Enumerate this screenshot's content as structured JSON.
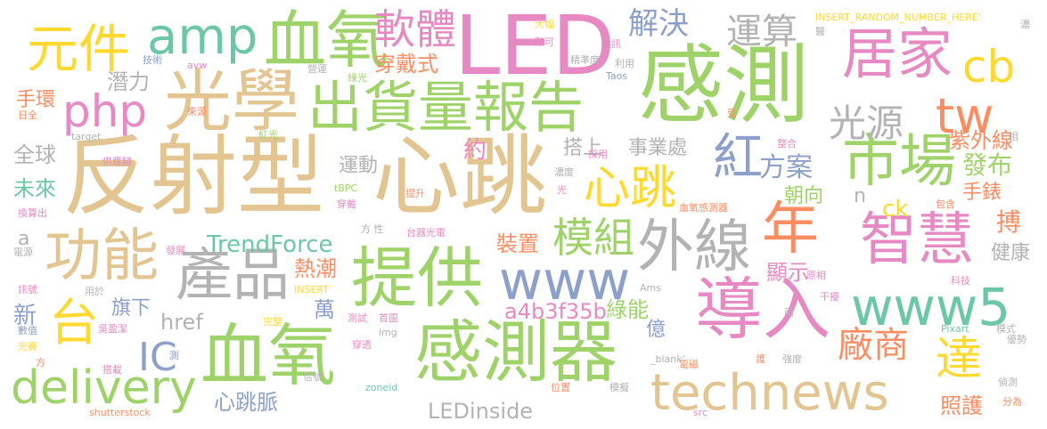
{
  "wordcloud": {
    "palette": {
      "green": "#9fd36a",
      "tan": "#e3c592",
      "gray": "#b3b3b3",
      "teal": "#6cc7a8",
      "pink": "#e78ac3",
      "blue": "#8da0cb",
      "orange": "#fc8d62",
      "yellow": "#ffd92f"
    },
    "words": [
      {
        "text": "感測",
        "color": "green"
      },
      {
        "text": "反射型",
        "color": "tan"
      },
      {
        "text": "心跳",
        "color": "tan"
      },
      {
        "text": "血氧",
        "color": "green"
      },
      {
        "text": "LED",
        "color": "pink"
      },
      {
        "text": "光學",
        "color": "tan"
      },
      {
        "text": "出貨量報告",
        "color": "green"
      },
      {
        "text": "感測器",
        "color": "green"
      },
      {
        "text": "血氧",
        "color": "green"
      },
      {
        "text": "提供",
        "color": "green"
      },
      {
        "text": "導入",
        "color": "pink"
      },
      {
        "text": "technews",
        "color": "tan"
      },
      {
        "text": "產品",
        "color": "gray"
      },
      {
        "text": "功能",
        "color": "tan"
      },
      {
        "text": "www5",
        "color": "teal"
      },
      {
        "text": "外線",
        "color": "gray"
      },
      {
        "text": "智慧",
        "color": "pink"
      },
      {
        "text": "市場",
        "color": "green"
      },
      {
        "text": "年",
        "color": "orange"
      },
      {
        "text": "居家",
        "color": "pink"
      },
      {
        "text": "元件",
        "color": "yellow"
      },
      {
        "text": "amp",
        "color": "teal"
      },
      {
        "text": "軟體",
        "color": "pink"
      },
      {
        "text": "www",
        "color": "blue"
      },
      {
        "text": "心跳",
        "color": "yellow"
      },
      {
        "text": "php",
        "color": "pink"
      },
      {
        "text": "delivery",
        "color": "green"
      },
      {
        "text": "tw",
        "color": "orange"
      },
      {
        "text": "cb",
        "color": "yellow"
      },
      {
        "text": "模組",
        "color": "green"
      },
      {
        "text": "紅",
        "color": "blue"
      },
      {
        "text": "台",
        "color": "yellow"
      },
      {
        "text": "廠商",
        "color": "orange"
      },
      {
        "text": "達",
        "color": "yellow"
      },
      {
        "text": "運算",
        "color": "gray"
      },
      {
        "text": "解決",
        "color": "blue"
      },
      {
        "text": "光源",
        "color": "gray"
      },
      {
        "text": "TrendForce",
        "color": "teal"
      },
      {
        "text": "a4b3f35b",
        "color": "pink"
      },
      {
        "text": "IC",
        "color": "blue"
      },
      {
        "text": "方案",
        "color": "blue"
      },
      {
        "text": "紫外線",
        "color": "orange"
      },
      {
        "text": "LEDinside",
        "color": "gray"
      },
      {
        "text": "心跳脈",
        "color": "blue"
      },
      {
        "text": "穿戴式",
        "color": "orange"
      },
      {
        "text": "潛力",
        "color": "gray"
      },
      {
        "text": "手環",
        "color": "orange"
      },
      {
        "text": "全球",
        "color": "gray"
      },
      {
        "text": "未來",
        "color": "teal"
      },
      {
        "text": "運動",
        "color": "gray"
      },
      {
        "text": "搭上",
        "color": "gray"
      },
      {
        "text": "事業處",
        "color": "gray"
      },
      {
        "text": "發布",
        "color": "green"
      },
      {
        "text": "手錶",
        "color": "orange"
      },
      {
        "text": "朝向",
        "color": "green"
      },
      {
        "text": "裝置",
        "color": "orange"
      },
      {
        "text": "熱潮",
        "color": "orange"
      },
      {
        "text": "顯示",
        "color": "pink"
      },
      {
        "text": "綠能",
        "color": "green"
      },
      {
        "text": "健康",
        "color": "gray"
      },
      {
        "text": "照護",
        "color": "orange"
      },
      {
        "text": "旗下",
        "color": "blue"
      },
      {
        "text": "href",
        "color": "gray"
      },
      {
        "text": "新",
        "color": "blue"
      },
      {
        "text": "萬",
        "color": "blue"
      },
      {
        "text": "億",
        "color": "blue"
      },
      {
        "text": "約",
        "color": "pink"
      },
      {
        "text": "ck",
        "color": "yellow"
      },
      {
        "text": "搏",
        "color": "orange"
      },
      {
        "text": "a",
        "color": "gray"
      },
      {
        "text": "n",
        "color": "gray"
      },
      {
        "text": "大幅",
        "color": "yellow"
      },
      {
        "text": "即可",
        "color": "pink"
      },
      {
        "text": "精準度",
        "color": "gray"
      },
      {
        "text": "雜訊",
        "color": "pink"
      },
      {
        "text": "INSERT_RANDOM_NUMBER_HERE'",
        "color": "yellow"
      },
      {
        "text": "利用",
        "color": "gray"
      },
      {
        "text": "Taos",
        "color": "blue"
      },
      {
        "text": "技術",
        "color": "blue"
      },
      {
        "text": "avw",
        "color": "pink"
      },
      {
        "text": "營運",
        "color": "gray"
      },
      {
        "text": "綠光",
        "color": "green"
      },
      {
        "text": "日全",
        "color": "orange"
      },
      {
        "text": "來源",
        "color": "orange"
      },
      {
        "text": "target",
        "color": "gray"
      },
      {
        "text": "紅光",
        "color": "green"
      },
      {
        "text": "供應鏈",
        "color": "pink"
      },
      {
        "text": "採用",
        "color": "pink"
      },
      {
        "text": "濃度",
        "color": "gray"
      },
      {
        "text": "提升",
        "color": "orange"
      },
      {
        "text": "tBPC",
        "color": "green"
      },
      {
        "text": "穿戴",
        "color": "pink"
      },
      {
        "text": "光",
        "color": "pink"
      },
      {
        "text": "換算出",
        "color": "pink"
      },
      {
        "text": "電源",
        "color": "gray"
      },
      {
        "text": "發展",
        "color": "pink"
      },
      {
        "text": "方 性",
        "color": "gray"
      },
      {
        "text": "台器光電",
        "color": "pink"
      },
      {
        "text": "血氧感測器",
        "color": "orange"
      },
      {
        "text": "包含",
        "color": "orange"
      },
      {
        "text": "訊號",
        "color": "pink"
      },
      {
        "text": "用於",
        "color": "gray"
      },
      {
        "text": "INSERT",
        "color": "yellow"
      },
      {
        "text": "Ams",
        "color": "gray"
      },
      {
        "text": "原相",
        "color": "pink"
      },
      {
        "text": "科技",
        "color": "pink"
      },
      {
        "text": "數值",
        "color": "blue"
      },
      {
        "text": "光賽",
        "color": "yellow"
      },
      {
        "text": "吳盈潔",
        "color": "pink"
      },
      {
        "text": "完整",
        "color": "yellow"
      },
      {
        "text": "測試",
        "color": "pink"
      },
      {
        "text": "首圖",
        "color": "pink"
      },
      {
        "text": "干擾",
        "color": "pink"
      },
      {
        "text": "兩",
        "color": "gray"
      },
      {
        "text": "Pixart",
        "color": "teal"
      },
      {
        "text": "模式",
        "color": "gray"
      },
      {
        "text": "優勢",
        "color": "gray"
      },
      {
        "text": "img",
        "color": "gray"
      },
      {
        "text": "穿透",
        "color": "pink"
      },
      {
        "text": "_blank'",
        "color": "gray"
      },
      {
        "text": "護",
        "color": "orange"
      },
      {
        "text": "強度",
        "color": "gray"
      },
      {
        "text": "電磁",
        "color": "orange"
      },
      {
        "text": "搭載",
        "color": "pink"
      },
      {
        "text": "信號",
        "color": "gray"
      },
      {
        "text": "zoneid",
        "color": "teal"
      },
      {
        "text": "位置",
        "color": "orange"
      },
      {
        "text": "模擬",
        "color": "gray"
      },
      {
        "text": "偵測",
        "color": "gray"
      },
      {
        "text": "分為",
        "color": "orange"
      },
      {
        "text": "shutterstock",
        "color": "orange"
      },
      {
        "text": "src",
        "color": "pink"
      },
      {
        "text": "整合",
        "color": "pink"
      },
      {
        "text": "受",
        "color": "orange"
      },
      {
        "text": "相",
        "color": "gray"
      },
      {
        "text": "濃",
        "color": "gray"
      },
      {
        "text": "醫",
        "color": "gray"
      },
      {
        "text": "測",
        "color": "blue"
      },
      {
        "text": "方",
        "color": "orange"
      }
    ]
  }
}
